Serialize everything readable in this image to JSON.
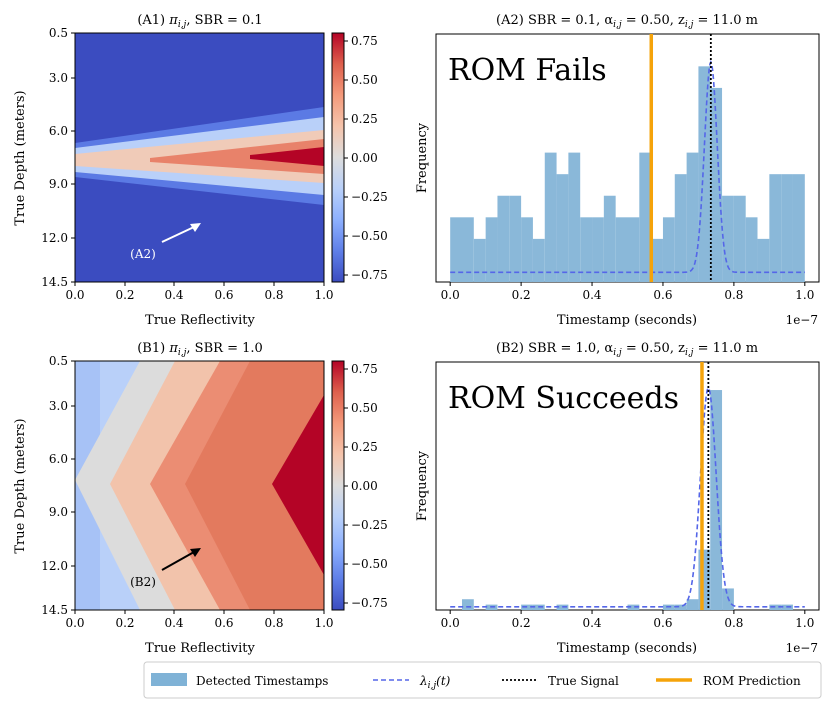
{
  "chart_data": [
    {
      "id": "A1",
      "type": "heatmap",
      "title_prefix": "(A1)",
      "title_symbol": "π",
      "title_sub": "i,j",
      "title_suffix": ", SBR = 0.1",
      "xlabel": "True Reflectivity",
      "ylabel": "True Depth (meters)",
      "x_ticks": [
        "0.0",
        "0.2",
        "0.4",
        "0.6",
        "0.8",
        "1.0"
      ],
      "y_ticks": [
        "0.5",
        "3.0",
        "6.0",
        "9.0",
        "12.0",
        "14.5"
      ],
      "xlim": [
        0,
        1
      ],
      "ylim": [
        0.5,
        14.5
      ],
      "colorbar_ticks": [
        "0.75",
        "0.50",
        "0.25",
        "0.00",
        "−0.25",
        "−0.50",
        "−0.75"
      ],
      "colorbar_range": [
        -0.8,
        0.8
      ],
      "annotation": {
        "text": "(A2)",
        "arrow_to": [
          0.5,
          11.0
        ]
      }
    },
    {
      "id": "A2",
      "type": "bar",
      "title_prefix": "(A2)",
      "title_text": "SBR = 0.1, α",
      "title_alpha_sub": "i,j",
      "title_mid": " = 0.50, z",
      "title_z_sub": "i,j",
      "title_suffix": " = 11.0 m",
      "big_label": "ROM Fails",
      "xlabel": "Timestamp (seconds)",
      "ylabel": "Frequency",
      "x_ticks": [
        "0.0",
        "0.2",
        "0.4",
        "0.6",
        "0.8",
        "1.0"
      ],
      "offset_text": "1e−7",
      "xlim": [
        -0.04,
        1.04
      ],
      "ylim": [
        0,
        11.5
      ],
      "bin_width": 0.0333,
      "bin_starts": [
        0.0,
        0.0333,
        0.0667,
        0.1,
        0.1333,
        0.1667,
        0.2,
        0.2333,
        0.2667,
        0.3,
        0.3333,
        0.3667,
        0.4,
        0.4333,
        0.4667,
        0.5,
        0.5333,
        0.5667,
        0.6,
        0.6333,
        0.6667,
        0.7,
        0.7333,
        0.7667,
        0.8,
        0.8333,
        0.8667,
        0.9,
        0.9333,
        0.9667
      ],
      "counts": [
        3,
        3,
        2,
        3,
        4,
        4,
        3,
        2,
        6,
        5,
        6,
        3,
        3,
        4,
        3,
        3,
        6,
        2,
        3,
        5,
        6,
        10,
        9,
        4,
        4,
        3,
        2,
        5,
        5,
        5
      ],
      "lambda_curve": {
        "baseline": 0.45,
        "peak": 10.2,
        "center": 0.735,
        "width": 0.018
      },
      "true_signal": 0.735,
      "rom_prediction": 0.567
    },
    {
      "id": "B1",
      "type": "heatmap",
      "title_prefix": "(B1)",
      "title_symbol": "π",
      "title_sub": "i,j",
      "title_suffix": ", SBR = 1.0",
      "xlabel": "True Reflectivity",
      "ylabel": "True Depth (meters)",
      "x_ticks": [
        "0.0",
        "0.2",
        "0.4",
        "0.6",
        "0.8",
        "1.0"
      ],
      "y_ticks": [
        "0.5",
        "3.0",
        "6.0",
        "9.0",
        "12.0",
        "14.5"
      ],
      "xlim": [
        0,
        1
      ],
      "ylim": [
        0.5,
        14.5
      ],
      "colorbar_ticks": [
        "0.75",
        "0.50",
        "0.25",
        "0.00",
        "−0.25",
        "−0.50",
        "−0.75"
      ],
      "colorbar_range": [
        -0.8,
        0.8
      ],
      "annotation": {
        "text": "(B2)",
        "arrow_to": [
          0.5,
          11.0
        ]
      }
    },
    {
      "id": "B2",
      "type": "bar",
      "title_prefix": "(B2)",
      "title_text": "SBR = 1.0, α",
      "title_alpha_sub": "i,j",
      "title_mid": " = 0.50, z",
      "title_z_sub": "i,j",
      "title_suffix": " = 11.0 m",
      "big_label": "ROM Succeeds",
      "xlabel": "Timestamp (seconds)",
      "ylabel": "Frequency",
      "x_ticks": [
        "0.0",
        "0.2",
        "0.4",
        "0.6",
        "0.8",
        "1.0"
      ],
      "offset_text": "1e−7",
      "xlim": [
        -0.04,
        1.04
      ],
      "ylim": [
        0,
        11.5
      ],
      "bin_width": 0.0333,
      "bin_starts": [
        0.0,
        0.0333,
        0.0667,
        0.1,
        0.1333,
        0.1667,
        0.2,
        0.2333,
        0.2667,
        0.3,
        0.3333,
        0.3667,
        0.4,
        0.4333,
        0.4667,
        0.5,
        0.5333,
        0.5667,
        0.6,
        0.6333,
        0.6667,
        0.7,
        0.7333,
        0.7667,
        0.8,
        0.8333,
        0.8667,
        0.9,
        0.9333,
        0.9667
      ],
      "counts": [
        0,
        0.5,
        0,
        0.25,
        0,
        0,
        0.25,
        0.25,
        0,
        0.25,
        0,
        0,
        0,
        0,
        0,
        0.25,
        0,
        0,
        0.25,
        0.25,
        0.5,
        2.8,
        10.2,
        1.0,
        0,
        0,
        0,
        0.25,
        0.25,
        0
      ],
      "lambda_curve": {
        "baseline": 0.15,
        "peak": 10.3,
        "center": 0.728,
        "width": 0.022
      },
      "true_signal": 0.728,
      "rom_prediction": 0.71
    }
  ],
  "legend": {
    "items": [
      {
        "kind": "patch",
        "label": "Detected Timestamps",
        "color": "#7fb2d6"
      },
      {
        "kind": "dashed",
        "label_symbol": "λ",
        "label_sub": "i,j",
        "label_suffix": "(t)",
        "color": "#5566e8"
      },
      {
        "kind": "dotted",
        "label": "True Signal",
        "color": "#000000"
      },
      {
        "kind": "solid",
        "label": "ROM Prediction",
        "color": "#f5a30a"
      }
    ]
  },
  "colors": {
    "hist": "#8ab8d9",
    "lambda": "#5566e8",
    "truth": "#000000",
    "rom": "#f5a30a"
  }
}
